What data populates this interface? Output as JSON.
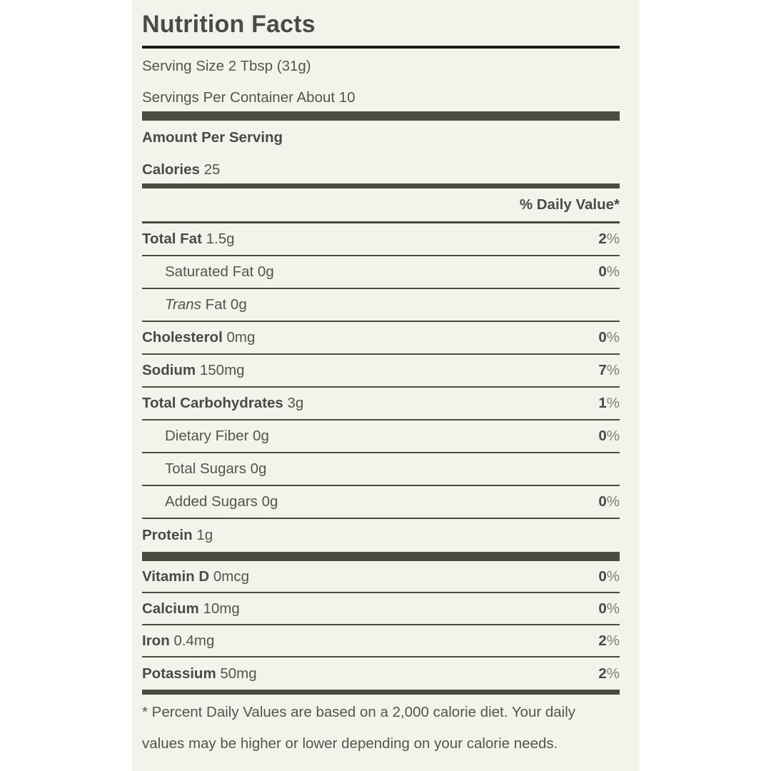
{
  "title": "Nutrition Facts",
  "serving": {
    "size": "Serving Size 2 Tbsp (31g)",
    "per_container": "Servings Per Container About 10"
  },
  "amount_per_serving_label": "Amount Per Serving",
  "calories": {
    "label": "Calories",
    "value": "25"
  },
  "daily_value_header": "% Daily Value*",
  "nutrients": [
    {
      "label": "Total Fat",
      "amount": "1.5g",
      "dv": "2%",
      "style": "bold",
      "indent": false
    },
    {
      "label": "Saturated Fat",
      "amount": "0g",
      "dv": "0%",
      "style": "regular",
      "indent": true
    },
    {
      "label": "Trans",
      "label_rest": "Fat",
      "amount": "0g",
      "dv": null,
      "style": "italic",
      "indent": true
    },
    {
      "label": "Cholesterol",
      "amount": "0mg",
      "dv": "0%",
      "style": "bold",
      "indent": false
    },
    {
      "label": "Sodium",
      "amount": "150mg",
      "dv": "7%",
      "style": "bold",
      "indent": false
    },
    {
      "label": "Total Carbohydrates",
      "amount": "3g",
      "dv": "1%",
      "style": "bold",
      "indent": false
    },
    {
      "label": "Dietary Fiber",
      "amount": "0g",
      "dv": "0%",
      "style": "regular",
      "indent": true
    },
    {
      "label": "Total Sugars",
      "amount": "0g",
      "dv": null,
      "style": "regular",
      "indent": true
    },
    {
      "label": "Added Sugars",
      "amount": "0g",
      "dv": "0%",
      "style": "regular",
      "indent": true
    },
    {
      "label": "Protein",
      "amount": "1g",
      "dv": null,
      "style": "bold",
      "indent": false
    }
  ],
  "vitamins": [
    {
      "label": "Vitamin D",
      "amount": "0mcg",
      "dv": "0%",
      "style": "bold",
      "indent": false
    },
    {
      "label": "Calcium",
      "amount": "10mg",
      "dv": "0%",
      "style": "bold",
      "indent": false
    },
    {
      "label": "Iron",
      "amount": "0.4mg",
      "dv": "2%",
      "style": "bold",
      "indent": false
    },
    {
      "label": "Potassium",
      "amount": "50mg",
      "dv": "2%",
      "style": "bold",
      "indent": false
    }
  ],
  "footnote": {
    "line1": "* Percent Daily Values are based on a 2,000 calorie diet. Your daily",
    "line2": "values may be higher or lower depending on your calorie needs."
  },
  "colors": {
    "page_background": "#ffffff",
    "panel_background": "#f0f4ea",
    "dark_rule": "#4c4b43",
    "title_rule": "#191917",
    "text_bold": "#4b4a44",
    "text_regular": "#55544d",
    "percent_sign": "#807f76"
  }
}
